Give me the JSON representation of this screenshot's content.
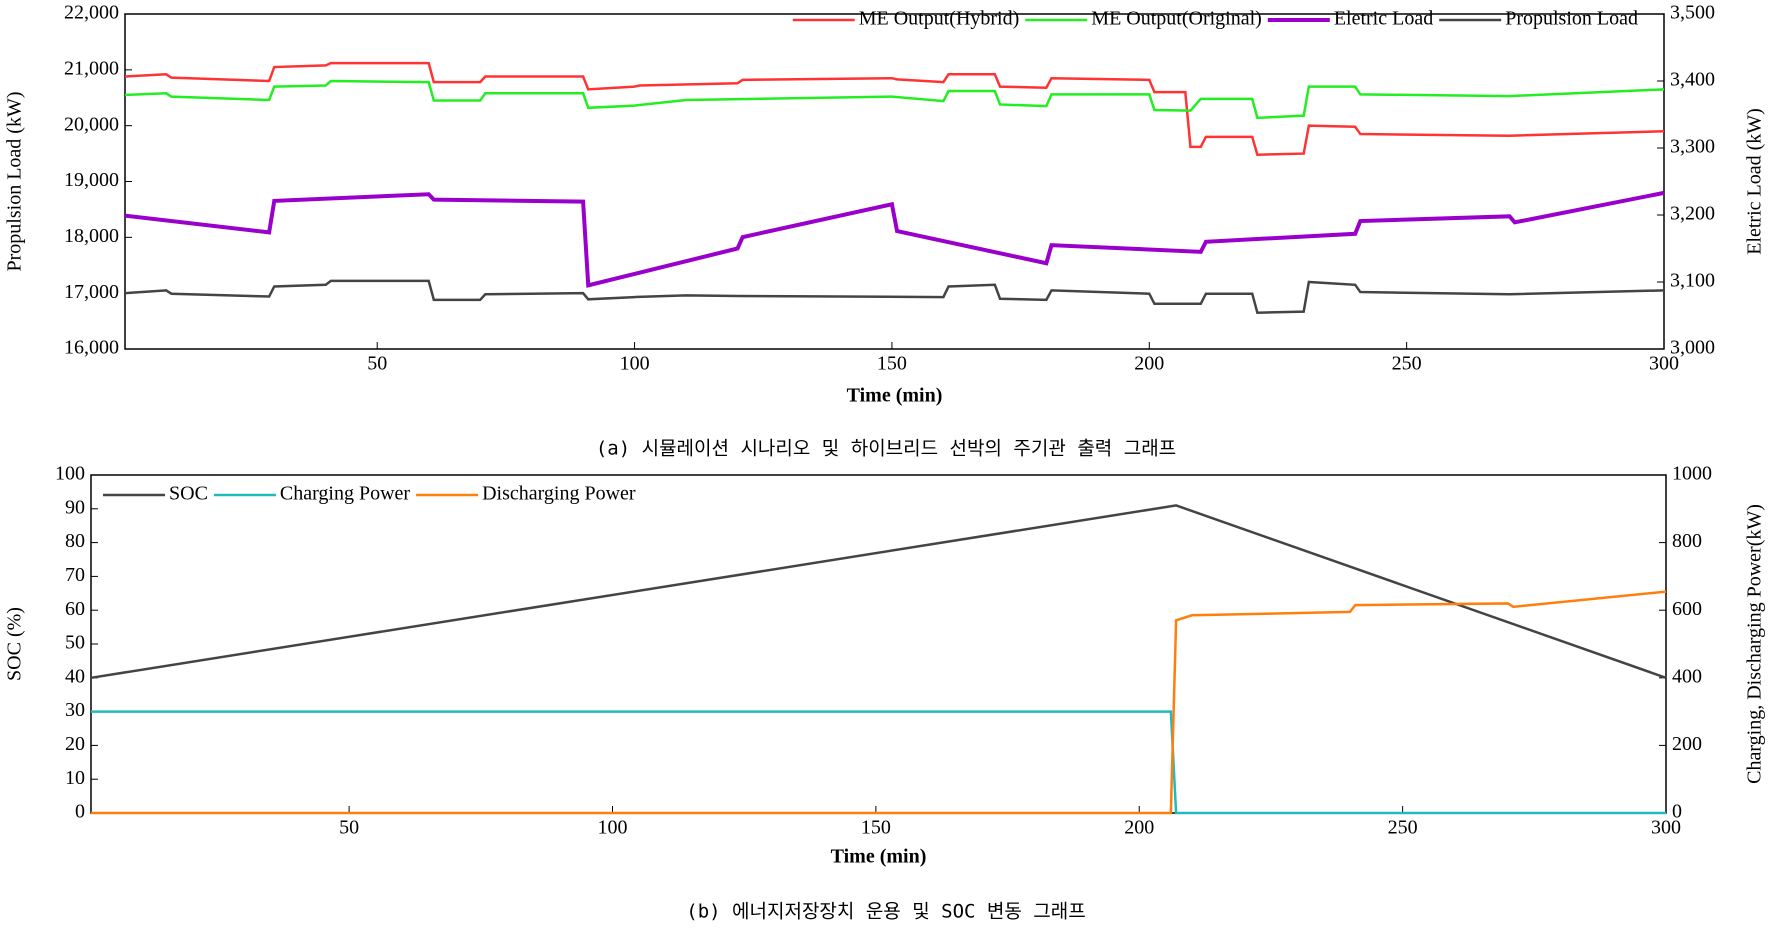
{
  "chart_data": [
    {
      "type": "line",
      "caption": "(a) 시뮬레이션 시나리오 및 하이브리드 선박의 주기관 출력 그래프",
      "xlabel": "Time (min)",
      "ylabel": "Propulsion Load (kW)",
      "y2label": "Eletric Load (kW)",
      "y2color": "#cc00cc",
      "xlim": [
        1,
        300
      ],
      "xticks": [
        50,
        100,
        150,
        200,
        250,
        300
      ],
      "ylim": [
        16000,
        22000
      ],
      "yticks": [
        {
          "value": 16000,
          "label": "16,000"
        },
        {
          "value": 17000,
          "label": "17,000"
        },
        {
          "value": 18000,
          "label": "18,000"
        },
        {
          "value": 19000,
          "label": "19,000"
        },
        {
          "value": 20000,
          "label": "20,000"
        },
        {
          "value": 21000,
          "label": "21,000"
        },
        {
          "value": 22000,
          "label": "22,000"
        }
      ],
      "y2lim": [
        3000,
        3500
      ],
      "y2ticks": [
        {
          "value": 3000,
          "label": "3,000"
        },
        {
          "value": 3100,
          "label": "3,100"
        },
        {
          "value": 3200,
          "label": "3,200"
        },
        {
          "value": 3300,
          "label": "3,300"
        },
        {
          "value": 3400,
          "label": "3,400"
        },
        {
          "value": 3500,
          "label": "3,500"
        }
      ],
      "legend": "top-right",
      "series": [
        {
          "name": "ME Output(Hybrid)",
          "color": "#ff3333",
          "x": [
            1,
            9,
            10,
            29,
            30,
            40,
            41,
            60,
            61,
            70,
            71,
            90,
            91,
            100,
            101,
            120,
            121,
            150,
            151,
            160,
            161,
            170,
            171,
            180,
            181,
            200,
            201,
            207,
            208,
            210,
            211,
            220,
            221,
            230,
            231,
            240,
            241,
            270,
            300
          ],
          "values": [
            20880,
            20920,
            20860,
            20800,
            21050,
            21080,
            21120,
            21120,
            20780,
            20780,
            20880,
            20880,
            20650,
            20700,
            20720,
            20760,
            20820,
            20850,
            20830,
            20780,
            20920,
            20920,
            20700,
            20680,
            20850,
            20820,
            20600,
            20600,
            19620,
            19620,
            19800,
            19800,
            19480,
            19500,
            20000,
            19980,
            19850,
            19820,
            19900
          ]
        },
        {
          "name": "ME Output(Original)",
          "color": "#22ee22",
          "x": [
            1,
            9,
            10,
            29,
            30,
            40,
            41,
            60,
            61,
            70,
            71,
            90,
            91,
            100,
            110,
            150,
            160,
            161,
            170,
            171,
            180,
            181,
            200,
            201,
            208,
            210,
            220,
            221,
            230,
            231,
            240,
            241,
            270,
            300
          ],
          "values": [
            20550,
            20580,
            20520,
            20460,
            20700,
            20720,
            20800,
            20780,
            20450,
            20450,
            20580,
            20580,
            20320,
            20360,
            20460,
            20520,
            20440,
            20620,
            20620,
            20380,
            20350,
            20560,
            20560,
            20280,
            20270,
            20480,
            20480,
            20140,
            20180,
            20700,
            20700,
            20560,
            20530,
            20650
          ]
        },
        {
          "name": "Eletric Load",
          "color": "#9900cc",
          "axis": "y2",
          "width": 4,
          "x": [
            1,
            29,
            30,
            60,
            61,
            90,
            91,
            120,
            121,
            150,
            151,
            180,
            181,
            210,
            211,
            240,
            241,
            270,
            271,
            300
          ],
          "values": [
            3199,
            3174,
            3221,
            3231,
            3223,
            3220,
            3095,
            3150,
            3167,
            3216,
            3176,
            3128,
            3155,
            3145,
            3160,
            3172,
            3191,
            3198,
            3189,
            3233
          ]
        },
        {
          "name": "Propulsion Load",
          "color": "#444444",
          "x": [
            1,
            9,
            10,
            29,
            30,
            40,
            41,
            60,
            61,
            70,
            71,
            90,
            91,
            100,
            110,
            120,
            160,
            161,
            170,
            171,
            180,
            181,
            200,
            201,
            210,
            211,
            220,
            221,
            230,
            231,
            240,
            241,
            270,
            300
          ],
          "values": [
            17000,
            17050,
            16990,
            16940,
            17120,
            17150,
            17220,
            17220,
            16880,
            16880,
            16980,
            17000,
            16890,
            16930,
            16960,
            16950,
            16930,
            17120,
            17150,
            16900,
            16880,
            17050,
            16990,
            16810,
            16810,
            16990,
            16990,
            16650,
            16670,
            17200,
            17150,
            17020,
            16980,
            17050
          ]
        }
      ]
    },
    {
      "type": "line",
      "caption": "(b) 에너지저장장치 운용 및 SOC 변동 그래프",
      "xlabel": "Time (min)",
      "ylabel": "SOC (%)",
      "y2label": "Charging, Discharging Power(kW)",
      "y2color": "#000000",
      "xlim": [
        1,
        300
      ],
      "xticks": [
        50,
        100,
        150,
        200,
        250,
        300
      ],
      "ylim": [
        0,
        100
      ],
      "yticks": [
        0,
        10,
        20,
        30,
        40,
        50,
        60,
        70,
        80,
        90,
        100
      ],
      "y2lim": [
        0,
        1000
      ],
      "y2ticks": [
        0,
        200,
        400,
        600,
        800,
        1000
      ],
      "legend": "top-left",
      "series": [
        {
          "name": "SOC",
          "color": "#444444",
          "x": [
            1,
            207,
            300
          ],
          "values": [
            40,
            91,
            40
          ]
        },
        {
          "name": "Charging Power",
          "color": "#22bbbb",
          "axis": "y2",
          "x": [
            1,
            206,
            207,
            300
          ],
          "values": [
            300,
            300,
            0,
            0
          ]
        },
        {
          "name": "Discharging Power",
          "color": "#ff7f0e",
          "axis": "y2",
          "x": [
            1,
            206,
            207,
            210,
            240,
            241,
            270,
            271,
            300
          ],
          "values": [
            0,
            0,
            570,
            585,
            595,
            615,
            620,
            610,
            655
          ]
        }
      ]
    }
  ]
}
